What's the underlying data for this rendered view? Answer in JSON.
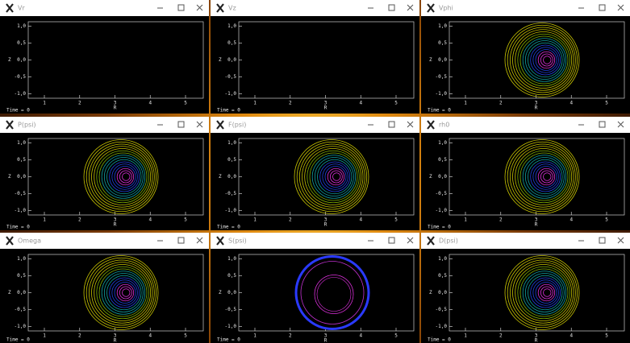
{
  "windows": [
    {
      "title": "Vr"
    },
    {
      "title": "Vz"
    },
    {
      "title": "Vphi"
    },
    {
      "title": "P(psi)"
    },
    {
      "title": "F(psi)"
    },
    {
      "title": "rh0"
    },
    {
      "title": "Omega"
    },
    {
      "title": "S(psi)"
    },
    {
      "title": "D(psi)"
    }
  ],
  "axes": {
    "yticks": [
      "1,0",
      "0,5",
      "0,0",
      "-0,5",
      "-1,0"
    ],
    "xticks": [
      "1",
      "2",
      "3",
      "4",
      "5"
    ],
    "xlabel": "R",
    "ylabel": "Z",
    "footer": "Time = 0"
  }
}
